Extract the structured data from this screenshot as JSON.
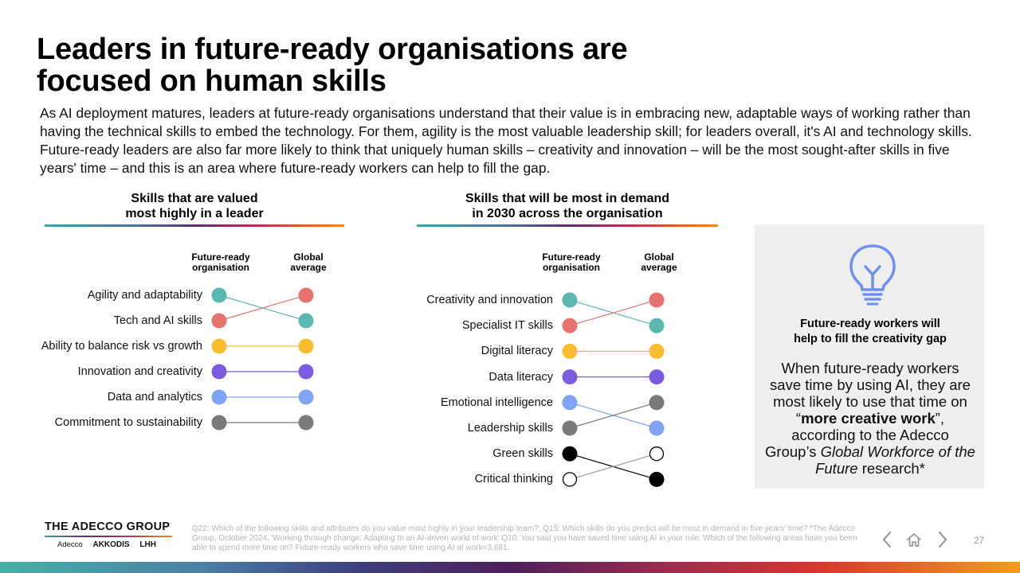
{
  "title_line1": "Leaders in future-ready organisations are",
  "title_line2": "focused on human skills",
  "intro": "As AI deployment matures, leaders at future-ready organisations understand that their value is in embracing new, adaptable ways of working rather than having the technical skills to embed the technology. For them, agility is the most valuable leadership skill; for leaders overall, it's AI and technology skills. Future-ready leaders are also far more likely to think that uniquely human skills – creativity and innovation – will be the most sought-after skills in five years' time – and this is an area where future-ready workers can help to fill the gap.",
  "left_chart": {
    "title_line1": "Skills that are valued",
    "title_line2": "most highly in a leader",
    "col_left_line1": "Future-ready",
    "col_left_line2": "organisation",
    "col_right_line1": "Global",
    "col_right_line2": "average"
  },
  "right_chart": {
    "title_line1": "Skills that will be most in demand",
    "title_line2": "in 2030 across the organisation",
    "col_left_line1": "Future-ready",
    "col_left_line2": "organisation",
    "col_right_line1": "Global",
    "col_right_line2": "average"
  },
  "chart_data": [
    {
      "type": "slope",
      "title": "Skills that are valued most highly in a leader",
      "columns": [
        "Future-ready organisation",
        "Global average"
      ],
      "items": [
        {
          "label": "Agility and adaptability",
          "color": "#5bb8b0",
          "rank_future_ready": 1,
          "rank_global": 2
        },
        {
          "label": "Tech and AI skills",
          "color": "#e8736e",
          "rank_future_ready": 2,
          "rank_global": 1
        },
        {
          "label": "Ability to balance risk vs growth",
          "color": "#fbbd2e",
          "rank_future_ready": 3,
          "rank_global": 3
        },
        {
          "label": "Innovation and creativity",
          "color": "#7b5be0",
          "rank_future_ready": 4,
          "rank_global": 4
        },
        {
          "label": "Data and analytics",
          "color": "#7fa4f5",
          "rank_future_ready": 5,
          "rank_global": 5
        },
        {
          "label": "Commitment to sustainability",
          "color": "#7a7a7a",
          "rank_future_ready": 6,
          "rank_global": 6
        }
      ]
    },
    {
      "type": "slope",
      "title": "Skills that will be most in demand in 2030 across the organisation",
      "columns": [
        "Future-ready organisation",
        "Global average"
      ],
      "items": [
        {
          "label": "Creativity and innovation",
          "color": "#5bb8b0",
          "rank_future_ready": 1,
          "rank_global": 2
        },
        {
          "label": "Specialist IT skills",
          "color": "#e8736e",
          "rank_future_ready": 2,
          "rank_global": 1
        },
        {
          "label": "Digital literacy",
          "color": "#fbbd2e",
          "rank_future_ready": 3,
          "rank_global": 3
        },
        {
          "label": "Data literacy",
          "color": "#7b5be0",
          "rank_future_ready": 4,
          "rank_global": 4
        },
        {
          "label": "Emotional intelligence",
          "color": "#7fa4f5",
          "rank_future_ready": 5,
          "rank_global": 6
        },
        {
          "label": "Leadership skills",
          "color": "#7a7a7a",
          "rank_future_ready": 6,
          "rank_global": 5
        },
        {
          "label": "Green skills",
          "color": "#000000",
          "rank_future_ready": 7,
          "rank_global": 8
        },
        {
          "label": "Critical thinking",
          "color": "#ffffff",
          "rank_future_ready": 8,
          "rank_global": 7
        }
      ]
    }
  ],
  "callout": {
    "icon": "lightbulb-icon",
    "heading_line1": "Future-ready workers will",
    "heading_line2": "help to fill the creativity gap",
    "body_1": "When future-ready workers save time by using AI, they are most likely to use that time on “",
    "body_bold": "more creative work",
    "body_2": "”, according to the Adecco Group’s ",
    "body_italic": "Global Workforce of the Future",
    "body_3": " research*"
  },
  "brand": {
    "name": "THE ADECCO GROUP",
    "sub1": "Adecco",
    "sub2": "AKKODIS",
    "sub3": "LHH"
  },
  "footnote": "Q22: Which of the following skills and attributes do you value most highly in your leadership team?; Q15: Which skills do you predict will be most in demand in five years' time? *The Adecco Group, October 2024, 'Working through change: Adapting to an AI-driven world of work' Q10: You said you have saved time using AI in your role. Which of the following areas have you been able to spend more time on? Future-ready workers who save time using AI at work=3,681.",
  "nav": {
    "prev": "previous-icon",
    "home": "home-icon",
    "next": "next-icon"
  },
  "page_number": "27",
  "colors": {
    "accent_teal": "#45b0a5",
    "accent_orange": "#f39d1b",
    "callout_bg": "#efefef"
  }
}
